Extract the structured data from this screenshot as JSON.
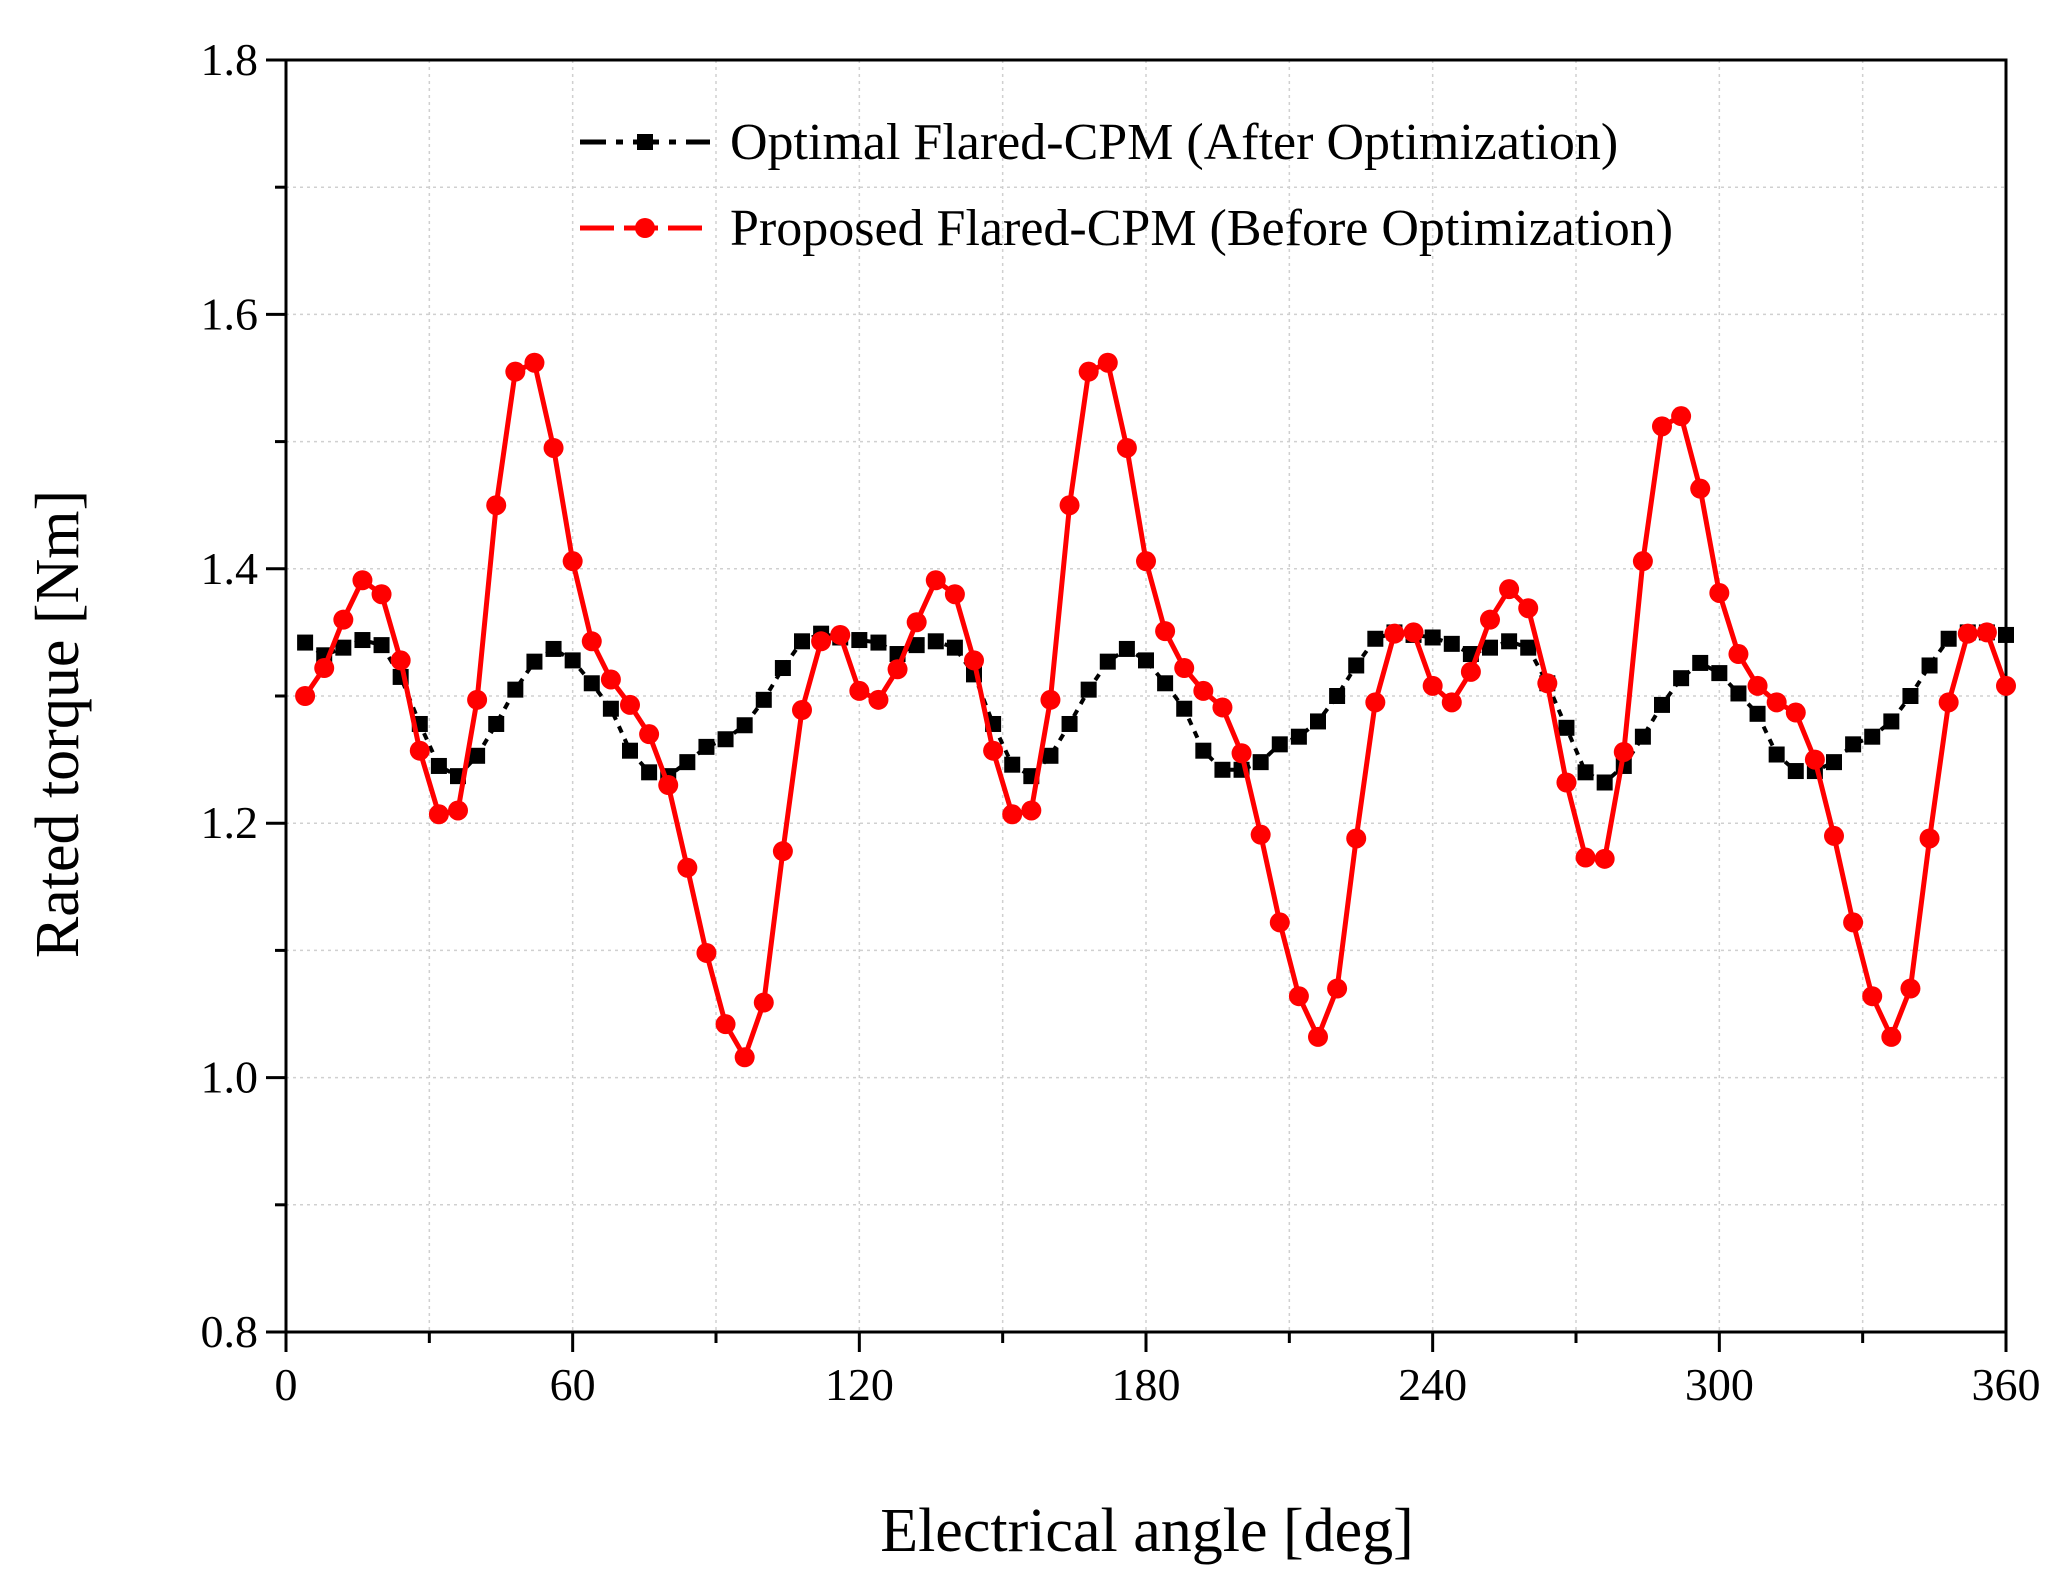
{
  "chart_data": {
    "type": "line",
    "title": "",
    "xlabel": "Electrical angle [deg]",
    "ylabel": "Rated torque [Nm]",
    "xlim": [
      0,
      360
    ],
    "ylim": [
      0.8,
      1.8
    ],
    "x_ticks": [
      "0",
      "60",
      "120",
      "180",
      "240",
      "300",
      "360"
    ],
    "y_ticks": [
      "0.8",
      "1.0",
      "1.2",
      "1.4",
      "1.6",
      "1.8"
    ],
    "grid": true,
    "legend_position": "top-right",
    "series": [
      {
        "name": "Optimal Flared-CPM (After Optimization)",
        "color": "#000000",
        "marker": "square",
        "x": [
          4,
          8,
          12,
          16,
          20,
          24,
          28,
          32,
          36,
          40,
          44,
          48,
          52,
          56,
          60,
          64,
          68,
          72,
          76,
          80,
          84,
          88,
          92,
          96,
          100,
          104,
          108,
          112,
          116,
          120,
          124,
          128,
          132,
          136,
          140,
          144,
          148,
          152,
          156,
          160,
          164,
          168,
          172,
          176,
          180,
          184,
          188,
          192,
          196,
          200,
          204,
          208,
          212,
          216,
          220,
          224,
          228,
          232,
          236,
          240,
          244,
          248,
          252,
          256,
          260,
          264,
          268,
          272,
          276,
          280,
          284,
          288,
          292,
          296,
          300,
          304,
          308,
          312,
          316,
          320,
          324,
          328,
          332,
          336,
          340,
          344,
          348,
          352,
          356,
          360
        ],
        "y": [
          1.342,
          1.332,
          1.338,
          1.344,
          1.34,
          1.315,
          1.278,
          1.245,
          1.237,
          1.253,
          1.278,
          1.305,
          1.327,
          1.337,
          1.328,
          1.31,
          1.29,
          1.257,
          1.24,
          1.237,
          1.248,
          1.26,
          1.266,
          1.277,
          1.297,
          1.322,
          1.343,
          1.349,
          1.346,
          1.344,
          1.342,
          1.333,
          1.34,
          1.343,
          1.338,
          1.317,
          1.278,
          1.246,
          1.237,
          1.253,
          1.278,
          1.305,
          1.327,
          1.337,
          1.328,
          1.31,
          1.29,
          1.257,
          1.242,
          1.242,
          1.248,
          1.262,
          1.268,
          1.28,
          1.3,
          1.324,
          1.345,
          1.35,
          1.348,
          1.346,
          1.341,
          1.333,
          1.338,
          1.343,
          1.338,
          1.31,
          1.275,
          1.24,
          1.232,
          1.245,
          1.268,
          1.293,
          1.314,
          1.326,
          1.318,
          1.302,
          1.286,
          1.254,
          1.241,
          1.241,
          1.248,
          1.262,
          1.268,
          1.28,
          1.3,
          1.324,
          1.345,
          1.35,
          1.35,
          1.348
        ]
      },
      {
        "name": "Proposed Flared-CPM (Before Optimization)",
        "color": "#ff0000",
        "marker": "circle",
        "x": [
          4,
          8,
          12,
          16,
          20,
          24,
          28,
          32,
          36,
          40,
          44,
          48,
          52,
          56,
          60,
          64,
          68,
          72,
          76,
          80,
          84,
          88,
          92,
          96,
          100,
          104,
          108,
          112,
          116,
          120,
          124,
          128,
          132,
          136,
          140,
          144,
          148,
          152,
          156,
          160,
          164,
          168,
          172,
          176,
          180,
          184,
          188,
          192,
          196,
          200,
          204,
          208,
          212,
          216,
          220,
          224,
          228,
          232,
          236,
          240,
          244,
          248,
          252,
          256,
          260,
          264,
          268,
          272,
          276,
          280,
          284,
          288,
          292,
          296,
          300,
          304,
          308,
          312,
          316,
          320,
          324,
          328,
          332,
          336,
          340,
          344,
          348,
          352,
          356,
          360
        ],
        "y": [
          1.3,
          1.322,
          1.36,
          1.391,
          1.38,
          1.328,
          1.257,
          1.207,
          1.21,
          1.297,
          1.45,
          1.555,
          1.562,
          1.495,
          1.406,
          1.343,
          1.313,
          1.293,
          1.27,
          1.23,
          1.165,
          1.098,
          1.042,
          1.016,
          1.059,
          1.178,
          1.289,
          1.343,
          1.348,
          1.304,
          1.297,
          1.321,
          1.358,
          1.391,
          1.38,
          1.328,
          1.257,
          1.207,
          1.21,
          1.297,
          1.45,
          1.555,
          1.562,
          1.495,
          1.406,
          1.351,
          1.322,
          1.304,
          1.291,
          1.255,
          1.191,
          1.122,
          1.064,
          1.032,
          1.07,
          1.188,
          1.295,
          1.349,
          1.35,
          1.308,
          1.295,
          1.319,
          1.36,
          1.384,
          1.369,
          1.31,
          1.232,
          1.173,
          1.172,
          1.256,
          1.406,
          1.512,
          1.52,
          1.463,
          1.381,
          1.333,
          1.308,
          1.295,
          1.287,
          1.25,
          1.19,
          1.122,
          1.064,
          1.032,
          1.07,
          1.188,
          1.295,
          1.349,
          1.35,
          1.308
        ]
      }
    ]
  }
}
